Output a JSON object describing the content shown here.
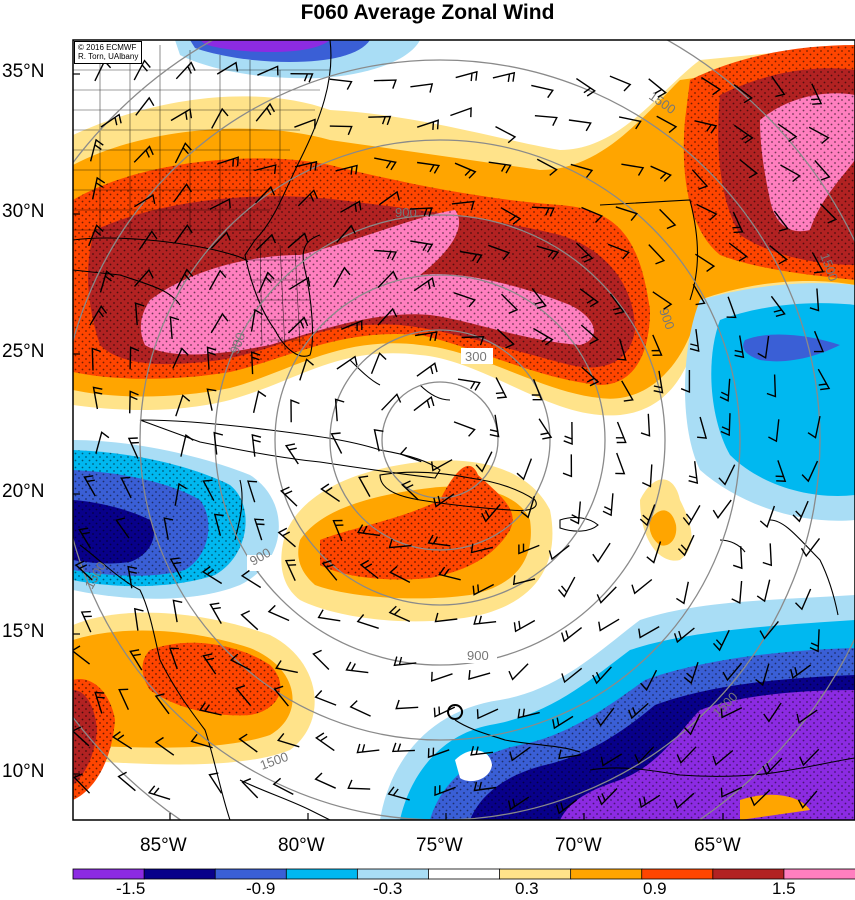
{
  "title": "F060 Average Zonal Wind",
  "credit": {
    "line1": "© 2016 ECMWF",
    "line2": "R. Torn, UAlbany"
  },
  "latitude_labels": [
    "35°N",
    "30°N",
    "25°N",
    "20°N",
    "15°N",
    "10°N"
  ],
  "longitude_labels": [
    "85°W",
    "80°W",
    "75°W",
    "70°W",
    "65°W"
  ],
  "colorbar": {
    "colors": [
      "#8c2be2",
      "#08008a",
      "#3a5fd6",
      "#00b8f0",
      "#a9ddf5",
      "#ffffff",
      "#ffe38a",
      "#ffa500",
      "#ff4500",
      "#b22222",
      "#ff7fbf"
    ],
    "labels": [
      "-1.5",
      "-0.9",
      "-0.3",
      "0.3",
      "0.9",
      "1.5"
    ]
  },
  "range_ring_labels": [
    "300",
    "900",
    "900",
    "900",
    "900",
    "900",
    "1500",
    "1500",
    "1500",
    "1500",
    "1500"
  ],
  "chart_data": {
    "type": "map",
    "title": "F060 Average Zonal Wind",
    "region": "Caribbean / Western Atlantic",
    "lat_range": [
      8,
      36
    ],
    "lon_range": [
      -88,
      -60
    ],
    "fill_variable": "Average Zonal Wind",
    "contour_levels": [
      -1.5,
      -1.2,
      -0.9,
      -0.6,
      -0.3,
      0.3,
      0.6,
      0.9,
      1.2,
      1.5
    ],
    "range_rings": [
      300,
      900,
      1500
    ],
    "overlays": [
      "wind barbs",
      "stippling",
      "coastlines",
      "US county boundaries"
    ]
  }
}
